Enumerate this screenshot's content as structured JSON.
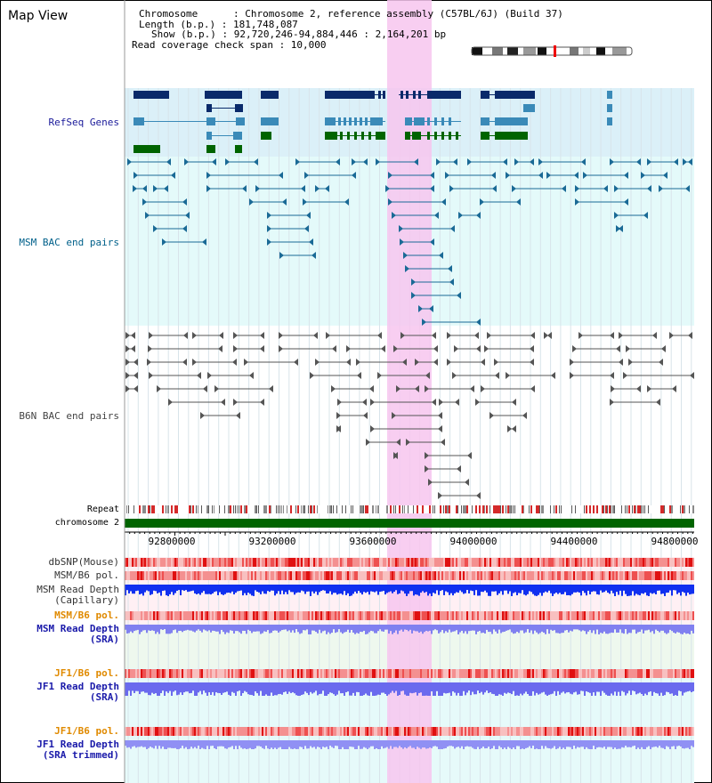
{
  "title": "Map View",
  "info": {
    "chromosome": "Chromosome      : Chromosome 2, reference assembly (C57BL/6J) (Build 37)",
    "length": "Length (b.p.) : 181,748,087",
    "show": "Show (b.p.) : 92,720,246-94,884,446 : 2,164,201 bp",
    "coverage": "Read coverage check span : 10,000"
  },
  "tracks": {
    "refseq": "RefSeq Genes",
    "msm_bac": "MSM BAC end pairs",
    "b6n_bac": "B6N BAC end pairs",
    "repeat": "Repeat",
    "chromosome": "chromosome 2"
  },
  "axis": {
    "ticks": [
      "92800000",
      "93200000",
      "93600000",
      "94000000",
      "94400000",
      "94800000"
    ]
  },
  "lower_tracks": {
    "dbsnp": "dbSNP(Mouse)",
    "msm_b6_pol_1": "MSM/B6 pol.",
    "msm_depth_cap_1": "MSM Read Depth",
    "msm_depth_cap_2": "(Capillary)",
    "msm_b6_pol_2": "MSM/B6 pol.",
    "msm_depth_sra_1": "MSM Read Depth",
    "msm_depth_sra_2": "(SRA)",
    "jf1_pol_1": "JF1/B6 pol.",
    "jf1_depth_1": "JF1 Read Depth",
    "jf1_depth_2": "(SRA)",
    "jf1_pol_2": "JF1/B6 pol.",
    "jf1_trim_1": "JF1 Read Depth",
    "jf1_trim_2": "(SRA trimmed)"
  },
  "colors": {
    "refseq_dark": "#0a2a6a",
    "refseq_mid": "#3a8ab8",
    "refseq_green": "#006400",
    "msm_line": "#1a6a96",
    "b6n_line": "#555555",
    "highlight": "#f7c6ef",
    "msm_label": "#00608a",
    "refseq_label": "#1a1a9a",
    "b6n_label": "#444444",
    "orange": "#e08a00",
    "blue_label": "#1a1aaa"
  }
}
